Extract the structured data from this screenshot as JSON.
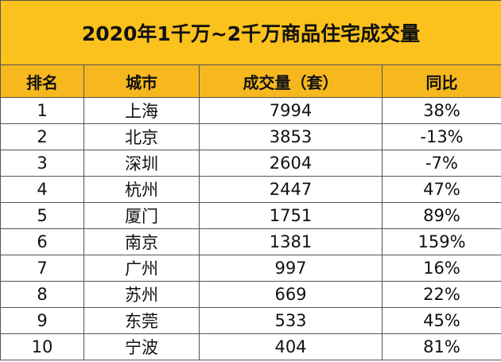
{
  "title": "2020年1千万~2千万商品住宅成交量",
  "table": {
    "header": [
      "排名",
      "城市",
      "成交量（套）",
      "同比"
    ],
    "rows": [
      [
        "1",
        "上海",
        "7994",
        "38%"
      ],
      [
        "2",
        "北京",
        "3853",
        "-13%"
      ],
      [
        "3",
        "深圳",
        "2604",
        "-7%"
      ],
      [
        "4",
        "杭州",
        "2447",
        "47%"
      ],
      [
        "5",
        "厦门",
        "1751",
        "89%"
      ],
      [
        "6",
        "南京",
        "1381",
        "159%"
      ],
      [
        "7",
        "广州",
        "997",
        "16%"
      ],
      [
        "8",
        "苏州",
        "669",
        "22%"
      ],
      [
        "9",
        "东莞",
        "533",
        "45%"
      ],
      [
        "10",
        "宁波",
        "404",
        "81%"
      ]
    ]
  }
}
